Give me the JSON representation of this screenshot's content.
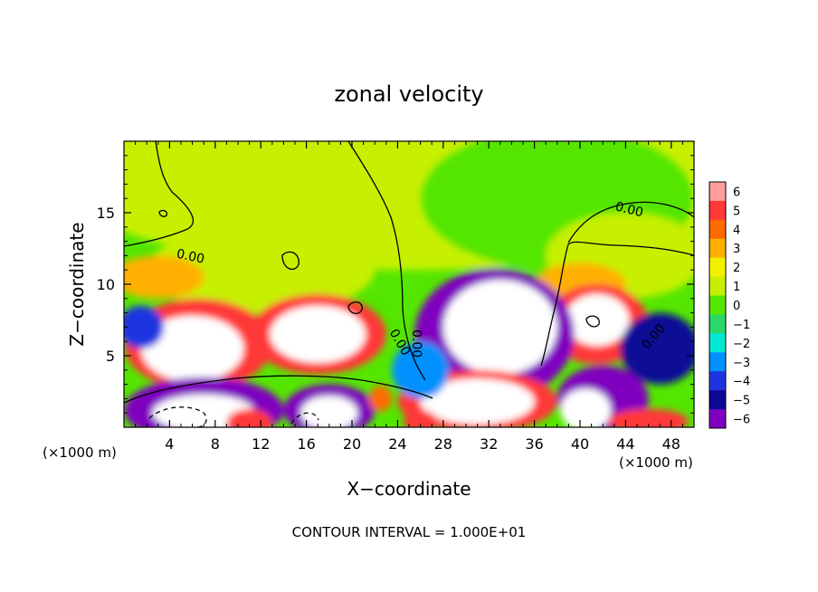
{
  "chart_data": {
    "type": "heatmap",
    "title": "zonal velocity",
    "xlabel": "X−coordinate",
    "ylabel": "Z−coordinate",
    "x_unit_left": "(×1000 m)",
    "x_unit_right": "(×1000 m)",
    "footer": "CONTOUR INTERVAL = 1.000E+01",
    "xlim": [
      0,
      50
    ],
    "ylim": [
      0,
      20
    ],
    "x_ticks": [
      4,
      8,
      12,
      16,
      20,
      24,
      28,
      32,
      36,
      40,
      44,
      48
    ],
    "y_ticks": [
      5,
      10,
      15
    ],
    "contour_labels": [
      "0.00",
      "0.00",
      "0.00",
      "0.00",
      "0.00"
    ],
    "colorbar": {
      "levels": [
        6,
        5,
        4,
        3,
        2,
        1,
        0,
        -1,
        -2,
        -3,
        -4,
        -5,
        -6
      ],
      "colors": [
        "#ff9f9f",
        "#ff3838",
        "#ff6a00",
        "#ffb000",
        "#f2f200",
        "#c6f000",
        "#54e600",
        "#2ad86a",
        "#00e8d2",
        "#0090ff",
        "#1f34e0",
        "#0c0896",
        "#8000c0"
      ]
    },
    "regions": [
      {
        "value": 0.8,
        "cx": 25,
        "cy": 17,
        "rx": 30,
        "ry": 6
      },
      {
        "value": -0.4,
        "cx": 38,
        "cy": 16,
        "rx": 12,
        "ry": 5
      },
      {
        "value": 1.4,
        "cx": 12,
        "cy": 11,
        "rx": 10,
        "ry": 3
      },
      {
        "value": 1.3,
        "cx": 44,
        "cy": 12,
        "rx": 7,
        "ry": 3
      },
      {
        "value": 3.5,
        "cx": 3,
        "cy": 10.5,
        "rx": 4,
        "ry": 1.5
      },
      {
        "value": 3.0,
        "cx": 40,
        "cy": 10,
        "rx": 4,
        "ry": 1.5
      },
      {
        "value": 5.5,
        "cx": 6.5,
        "cy": 5.8,
        "rx": 6.5,
        "ry": 3.2
      },
      {
        "value": 7.5,
        "cx": 6,
        "cy": 5.5,
        "rx": 4.5,
        "ry": 2.3
      },
      {
        "value": 5.5,
        "cx": 17,
        "cy": 6.5,
        "rx": 6,
        "ry": 2.8
      },
      {
        "value": 7.5,
        "cx": 17,
        "cy": 6.5,
        "rx": 4.2,
        "ry": 2.0
      },
      {
        "value": 5.5,
        "cx": 41.5,
        "cy": 7.2,
        "rx": 4.5,
        "ry": 2.8
      },
      {
        "value": 7.5,
        "cx": 41.5,
        "cy": 7.5,
        "rx": 2.8,
        "ry": 1.8
      },
      {
        "value": -5.5,
        "cx": 32.5,
        "cy": 6.5,
        "rx": 7,
        "ry": 4.6
      },
      {
        "value": -7.5,
        "cx": 33,
        "cy": 7,
        "rx": 5,
        "ry": 3.3
      },
      {
        "value": 5.5,
        "cx": 31,
        "cy": 1.8,
        "rx": 7,
        "ry": 2.2
      },
      {
        "value": 7.5,
        "cx": 31,
        "cy": 1.8,
        "rx": 5,
        "ry": 1.6
      },
      {
        "value": -5.5,
        "cx": 7,
        "cy": 1.2,
        "rx": 7,
        "ry": 2.3
      },
      {
        "value": -7.5,
        "cx": 7,
        "cy": 1.0,
        "rx": 4.5,
        "ry": 1.3
      },
      {
        "value": -5.5,
        "cx": 18,
        "cy": 1.2,
        "rx": 4,
        "ry": 1.8
      },
      {
        "value": -7.5,
        "cx": 18,
        "cy": 1.0,
        "rx": 2.5,
        "ry": 1.2
      },
      {
        "value": -5.5,
        "cx": 42,
        "cy": 2.0,
        "rx": 4,
        "ry": 2.3
      },
      {
        "value": -7.5,
        "cx": 40.5,
        "cy": 1.2,
        "rx": 2.2,
        "ry": 1.5
      },
      {
        "value": -4.5,
        "cx": 47,
        "cy": 5.5,
        "rx": 3.5,
        "ry": 2.5
      },
      {
        "value": -3.5,
        "cx": 1.5,
        "cy": 7,
        "rx": 2,
        "ry": 1.5
      },
      {
        "value": 5.5,
        "cx": 11,
        "cy": 0.3,
        "rx": 2,
        "ry": 1.0
      },
      {
        "value": 5.0,
        "cx": 46,
        "cy": 0.4,
        "rx": 3.5,
        "ry": 0.9
      },
      {
        "value": 5.0,
        "cx": 26,
        "cy": 0.4,
        "rx": 1.5,
        "ry": 0.8
      },
      {
        "value": 4.0,
        "cx": 22.5,
        "cy": 2.0,
        "rx": 1.0,
        "ry": 0.9
      },
      {
        "value": -3.0,
        "cx": 26,
        "cy": 4.0,
        "rx": 2.5,
        "ry": 2.0
      }
    ]
  }
}
